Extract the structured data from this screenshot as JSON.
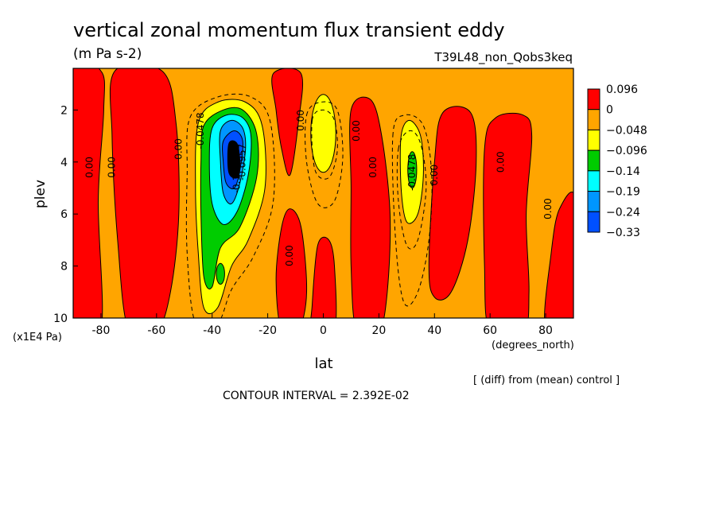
{
  "chart_data": {
    "type": "heatmap",
    "title": "vertical zonal momentum flux transient eddy",
    "units": "(m Pa s-2)",
    "run_label": "T39L48_non_Qobs3keq",
    "xlabel": "lat",
    "x_units": "(degrees_north)",
    "ylabel": "plev",
    "y_units": "(x1E4 Pa)",
    "xlim": [
      -90,
      90
    ],
    "ylim": [
      10,
      0.4
    ],
    "x_ticks": [
      -80,
      -60,
      -40,
      -20,
      0,
      20,
      40,
      60,
      80
    ],
    "y_ticks": [
      2,
      4,
      6,
      8,
      10
    ],
    "colorbar": {
      "labels": [
        "0.096",
        "0",
        "−0.048",
        "−0.096",
        "−0.14",
        "−0.19",
        "−0.24",
        "−0.33"
      ],
      "colors": [
        "#ff0000",
        "#ffa500",
        "#ffff00",
        "#00cc00",
        "#00ffff",
        "#0096ff",
        "#0050ff"
      ]
    },
    "contour_labels": [
      {
        "text": "0.00",
        "lat": -83,
        "plev": 4.2
      },
      {
        "text": "0.00",
        "lat": -75,
        "plev": 4.2
      },
      {
        "text": "0.00",
        "lat": -51,
        "plev": 3.5
      },
      {
        "text": "-0.0478",
        "lat": -43,
        "plev": 2.8
      },
      {
        "text": "-0.1435",
        "lat": -30,
        "plev": 4.5
      },
      {
        "text": "-0.0957",
        "lat": -28,
        "plev": 4.0
      },
      {
        "text": "0.00",
        "lat": -7,
        "plev": 2.4
      },
      {
        "text": "0.00",
        "lat": -11,
        "plev": 7.6
      },
      {
        "text": "0.00",
        "lat": 13,
        "plev": 2.8
      },
      {
        "text": "0.00",
        "lat": 19,
        "plev": 4.2
      },
      {
        "text": "-0.0478",
        "lat": 33,
        "plev": 4.4
      },
      {
        "text": "0.00",
        "lat": 41,
        "plev": 4.5
      },
      {
        "text": "0.00",
        "lat": 65,
        "plev": 4.0
      },
      {
        "text": "0.00",
        "lat": 82,
        "plev": 5.8
      }
    ],
    "field": {
      "background": "orange",
      "red_regions": [
        {
          "lat": -84,
          "plev_top": 0.7,
          "plev_bottom": 10,
          "level": 0.096
        },
        {
          "lat": -62,
          "plev_top": 0.9,
          "plev_bottom": 10,
          "level": 0.096
        },
        {
          "lat": -12,
          "plev_top": 0.8,
          "plev_bottom": 4.5,
          "level": 0.096
        },
        {
          "lat": -11,
          "plev_top": 6.0,
          "plev_bottom": 10,
          "level": 0.096
        },
        {
          "lat": 0,
          "plev_top": 7.0,
          "plev_bottom": 10,
          "level": 0.096
        },
        {
          "lat": 16,
          "plev_top": 1.7,
          "plev_bottom": 10,
          "level": 0.096
        },
        {
          "lat": 48,
          "plev_top": 2.0,
          "plev_bottom": 9.0,
          "level": 0.096
        },
        {
          "lat": 66,
          "plev_top": 2.3,
          "plev_bottom": 10,
          "level": 0.096
        },
        {
          "lat": 85,
          "plev_top": 6.0,
          "plev_bottom": 10,
          "level": 0.096
        }
      ],
      "negative_regions": [
        {
          "lat": -35,
          "plev_center": 4.5,
          "min_value": -0.33
        },
        {
          "lat": 0,
          "plev_center": 2.9,
          "min_value": -0.096
        },
        {
          "lat": 32,
          "plev_center": 4.4,
          "min_value": -0.14
        }
      ]
    }
  },
  "contour_interval": "CONTOUR INTERVAL = 2.392E-02",
  "note": "[ (diff) from (mean) control ]"
}
